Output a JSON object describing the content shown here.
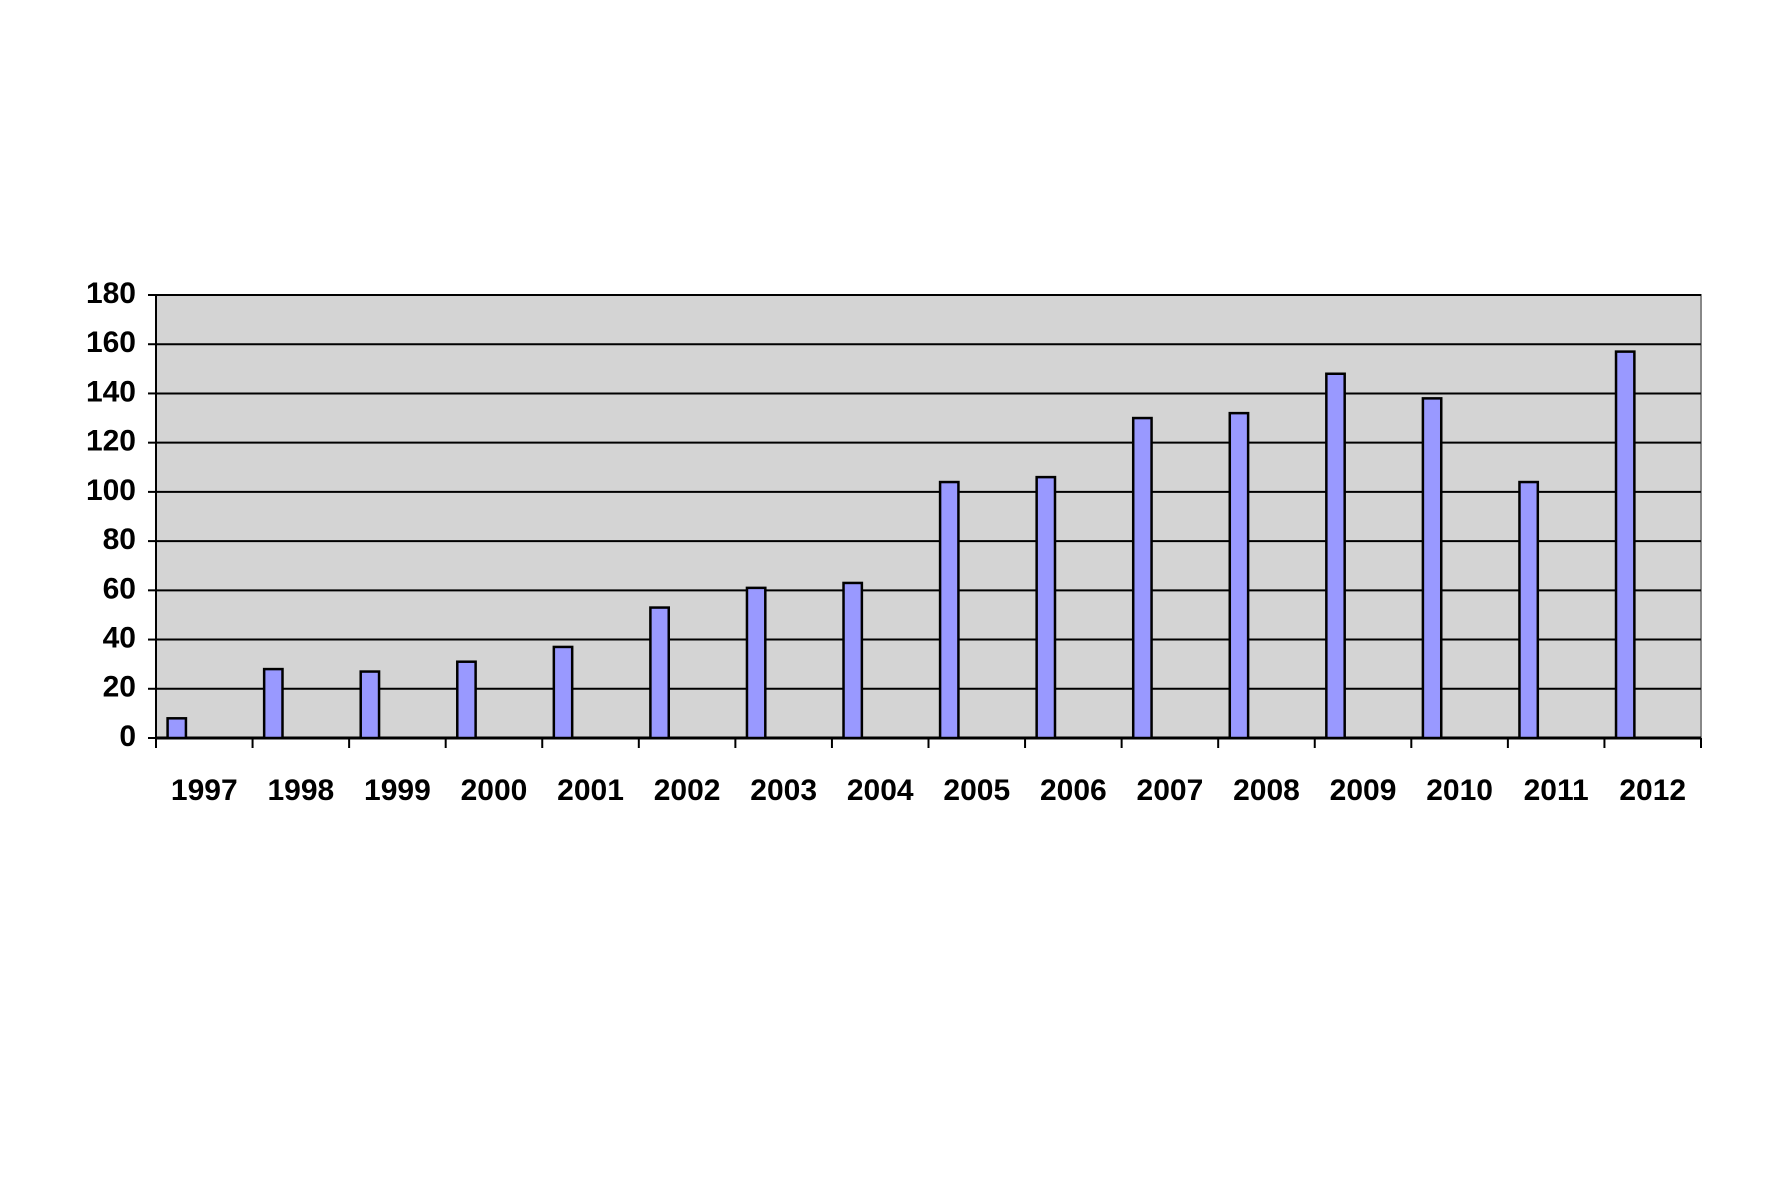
{
  "chart_data": {
    "type": "bar",
    "categories": [
      "1997",
      "1998",
      "1999",
      "2000",
      "2001",
      "2002",
      "2003",
      "2004",
      "2005",
      "2006",
      "2007",
      "2008",
      "2009",
      "2010",
      "2011",
      "2012"
    ],
    "values": [
      8,
      28,
      27,
      31,
      37,
      53,
      61,
      63,
      104,
      106,
      130,
      132,
      148,
      138,
      104,
      157
    ],
    "color": "#9999ff",
    "ylim": [
      0,
      180
    ],
    "yticks": [
      0,
      20,
      40,
      60,
      80,
      100,
      120,
      140,
      160,
      180
    ],
    "grid": true
  }
}
